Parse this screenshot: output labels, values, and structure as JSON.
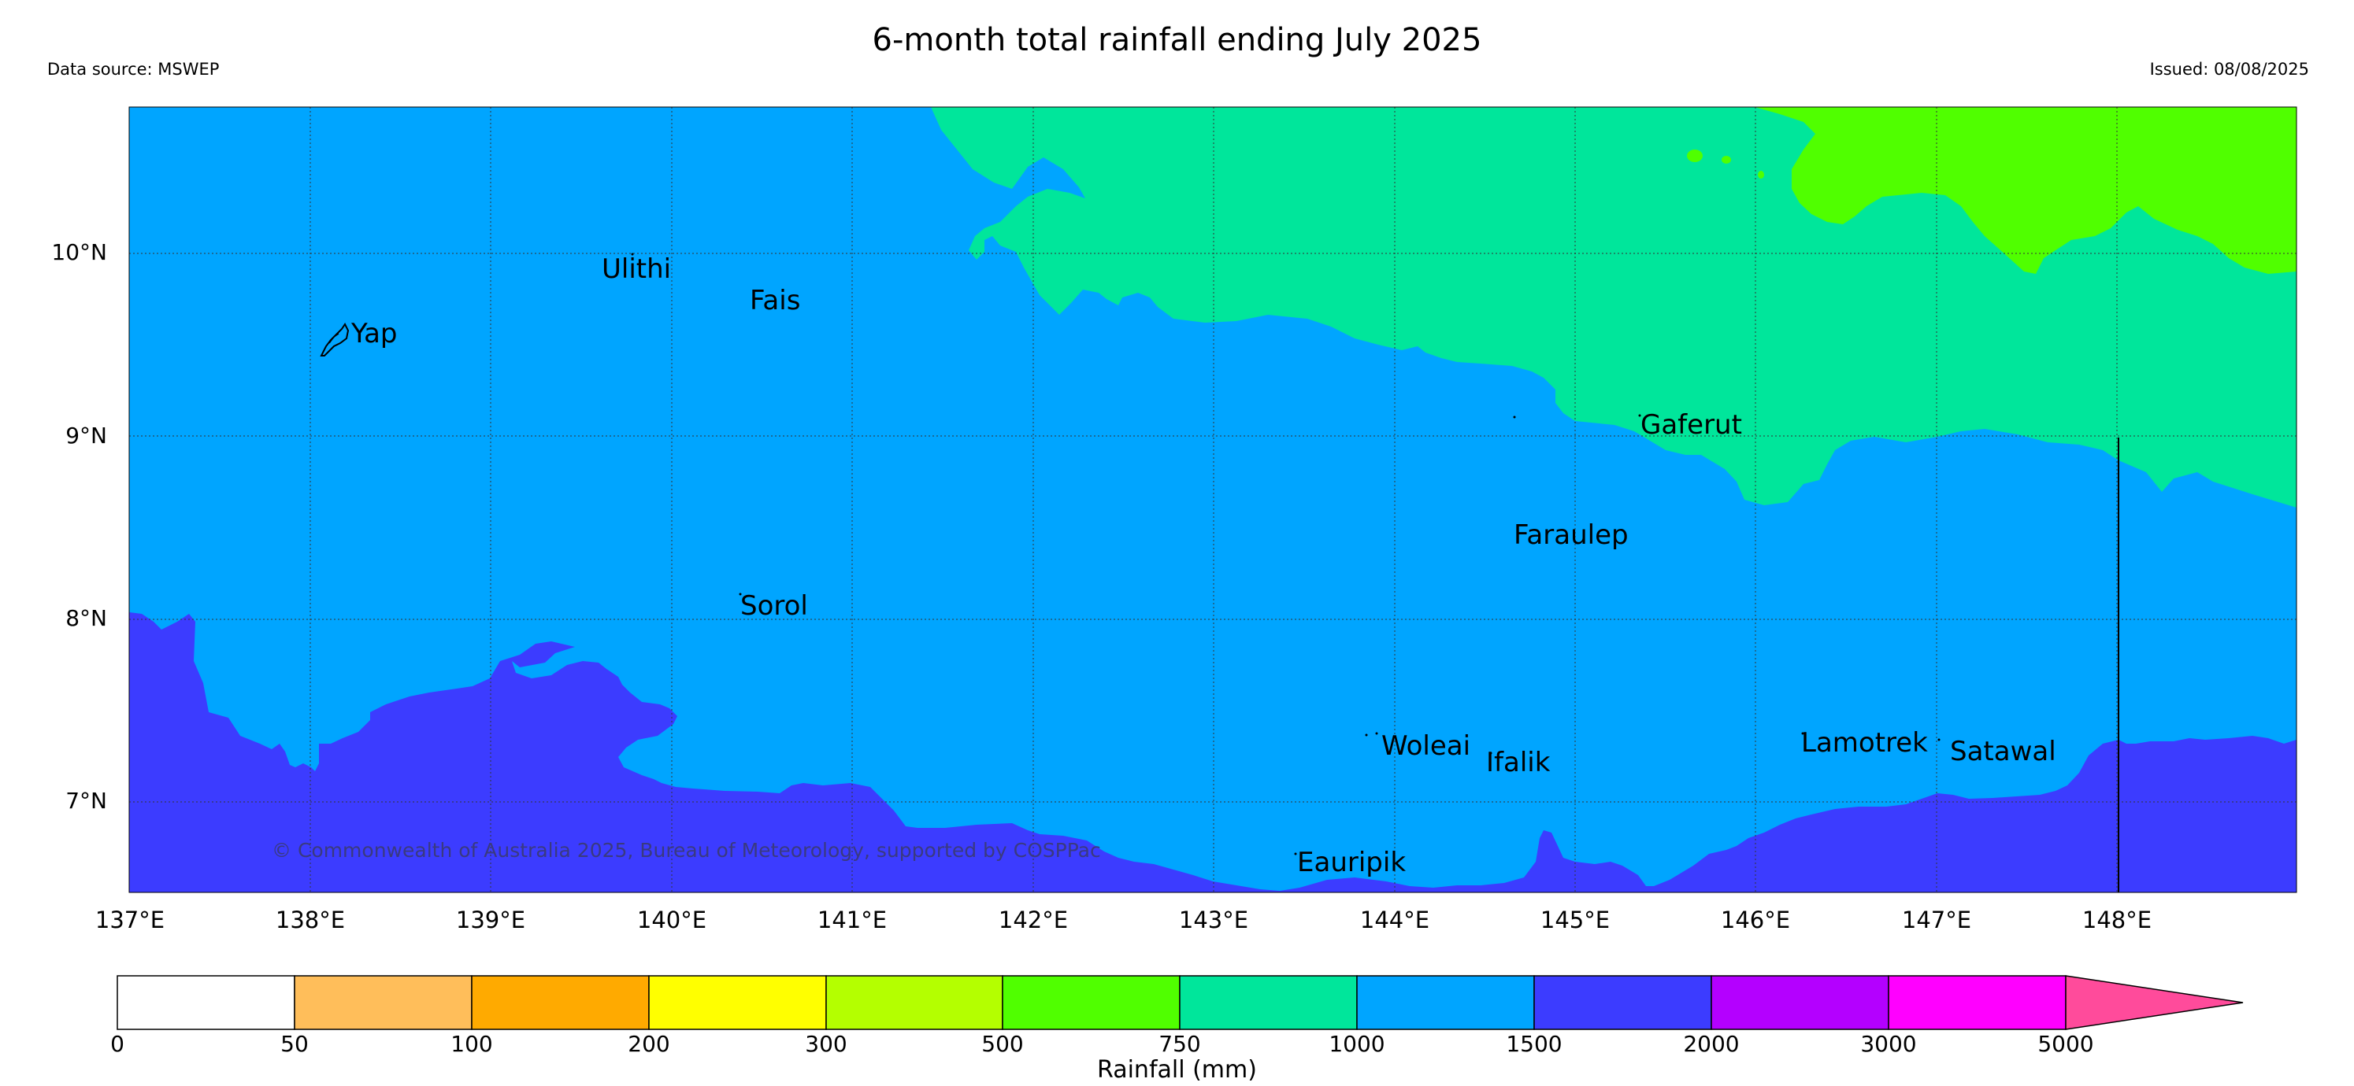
{
  "header": {
    "title": "6-month total rainfall ending July 2025",
    "data_source": "Data source: MSWEP",
    "issued": "Issued: 08/08/2025"
  },
  "map": {
    "lon_range": [
      137,
      149
    ],
    "lat_range": [
      6.5,
      10.8
    ],
    "gridlines": true,
    "lat_ticks": [
      {
        "value": 10,
        "label": "10°N"
      },
      {
        "value": 9,
        "label": "9°N"
      },
      {
        "value": 8,
        "label": "8°N"
      },
      {
        "value": 7,
        "label": "7°N"
      }
    ],
    "lon_ticks": [
      {
        "value": 137,
        "label": "137°E"
      },
      {
        "value": 138,
        "label": "138°E"
      },
      {
        "value": 139,
        "label": "139°E"
      },
      {
        "value": 140,
        "label": "140°E"
      },
      {
        "value": 141,
        "label": "141°E"
      },
      {
        "value": 142,
        "label": "142°E"
      },
      {
        "value": 143,
        "label": "143°E"
      },
      {
        "value": 144,
        "label": "144°E"
      },
      {
        "value": 145,
        "label": "145°E"
      },
      {
        "value": 146,
        "label": "146°E"
      },
      {
        "value": 147,
        "label": "147°E"
      },
      {
        "value": 148,
        "label": "148°E"
      }
    ],
    "places": [
      {
        "name": "Yap",
        "lon": 138.15,
        "lat": 9.52
      },
      {
        "name": "Ulithi",
        "lon": 139.72,
        "lat": 9.93
      },
      {
        "name": "Fais",
        "lon": 140.52,
        "lat": 9.76
      },
      {
        "name": "Gaferut",
        "lon": 145.38,
        "lat": 9.23
      },
      {
        "name": "Faraulep",
        "lon": 144.6,
        "lat": 8.6
      },
      {
        "name": "Sorol",
        "lon": 140.38,
        "lat": 8.14
      },
      {
        "name": "Woleai",
        "lon": 143.91,
        "lat": 7.37
      },
      {
        "name": "Ifalik",
        "lon": 144.45,
        "lat": 7.25
      },
      {
        "name": "Lamotrek",
        "lon": 146.37,
        "lat": 7.5
      },
      {
        "name": "Satawal",
        "lon": 147.03,
        "lat": 7.37
      },
      {
        "name": "Eauripik",
        "lon": 143.04,
        "lat": 6.68
      }
    ],
    "copyright": "© Commonwealth of Australia 2025, Bureau of Meteorology, supported by COSPPac",
    "fill_colors": {
      "band_1000_1500": "#00a5ff",
      "band_1500_2000": "#3c3cff",
      "band_750_1000": "#00e69b",
      "band_500_750": "#50ff00"
    }
  },
  "colorbar": {
    "label": "Rainfall (mm)",
    "ticks": [
      "0",
      "50",
      "100",
      "200",
      "300",
      "500",
      "750",
      "1000",
      "1500",
      "2000",
      "3000",
      "5000"
    ],
    "colors": [
      "#ffffff",
      "#ffbe5a",
      "#ffaa00",
      "#ffff00",
      "#b4ff00",
      "#50ff00",
      "#00e69b",
      "#00a5ff",
      "#3c3cff",
      "#b400ff",
      "#ff00ff"
    ],
    "extend_color": "#ff4b9b"
  }
}
